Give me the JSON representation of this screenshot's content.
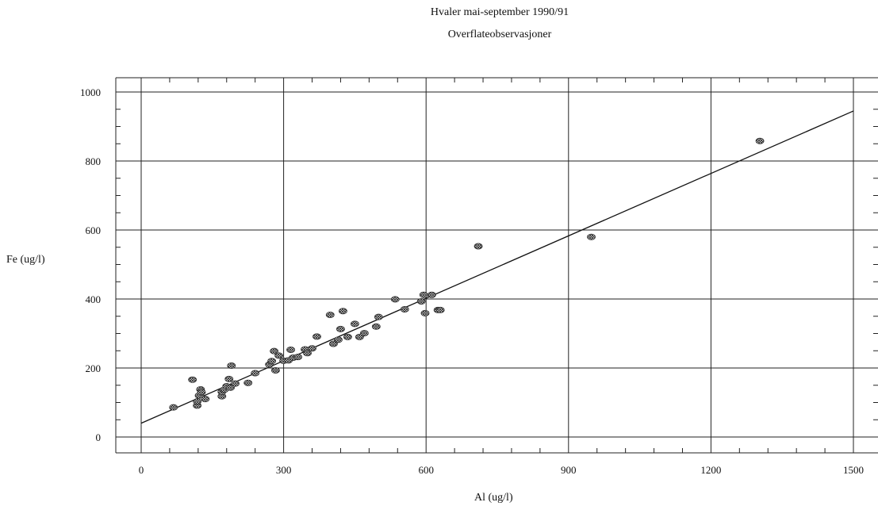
{
  "chart_data": {
    "type": "scatter",
    "title": "Hvaler mai-september 1990/91",
    "subtitle": "Overflateobservasjoner",
    "xlabel": "Al (ug/l)",
    "ylabel": "Fe (ug/l)",
    "xlim": [
      -60,
      1560
    ],
    "ylim": [
      -40,
      1030
    ],
    "xticks": [
      0,
      300,
      600,
      900,
      1200,
      1500
    ],
    "yticks": [
      0,
      200,
      400,
      600,
      800,
      1000
    ],
    "grid": true,
    "regression_line": {
      "x": [
        0,
        1500
      ],
      "y": [
        40,
        945
      ]
    },
    "points": [
      {
        "x": 68,
        "y": 86
      },
      {
        "x": 108,
        "y": 166
      },
      {
        "x": 118,
        "y": 91
      },
      {
        "x": 118,
        "y": 103
      },
      {
        "x": 122,
        "y": 120
      },
      {
        "x": 125,
        "y": 138
      },
      {
        "x": 127,
        "y": 130
      },
      {
        "x": 135,
        "y": 110
      },
      {
        "x": 170,
        "y": 118
      },
      {
        "x": 170,
        "y": 131
      },
      {
        "x": 175,
        "y": 137
      },
      {
        "x": 180,
        "y": 147
      },
      {
        "x": 185,
        "y": 168
      },
      {
        "x": 188,
        "y": 143
      },
      {
        "x": 190,
        "y": 207
      },
      {
        "x": 198,
        "y": 155
      },
      {
        "x": 225,
        "y": 157
      },
      {
        "x": 240,
        "y": 185
      },
      {
        "x": 270,
        "y": 210
      },
      {
        "x": 275,
        "y": 220
      },
      {
        "x": 280,
        "y": 249
      },
      {
        "x": 283,
        "y": 193
      },
      {
        "x": 290,
        "y": 236
      },
      {
        "x": 300,
        "y": 221
      },
      {
        "x": 310,
        "y": 222
      },
      {
        "x": 315,
        "y": 253
      },
      {
        "x": 320,
        "y": 230
      },
      {
        "x": 330,
        "y": 232
      },
      {
        "x": 345,
        "y": 254
      },
      {
        "x": 350,
        "y": 243
      },
      {
        "x": 360,
        "y": 257
      },
      {
        "x": 370,
        "y": 291
      },
      {
        "x": 398,
        "y": 354
      },
      {
        "x": 405,
        "y": 270
      },
      {
        "x": 415,
        "y": 282
      },
      {
        "x": 420,
        "y": 313
      },
      {
        "x": 425,
        "y": 365
      },
      {
        "x": 435,
        "y": 290
      },
      {
        "x": 450,
        "y": 328
      },
      {
        "x": 460,
        "y": 290
      },
      {
        "x": 470,
        "y": 301
      },
      {
        "x": 495,
        "y": 320
      },
      {
        "x": 500,
        "y": 348
      },
      {
        "x": 535,
        "y": 399
      },
      {
        "x": 555,
        "y": 370
      },
      {
        "x": 590,
        "y": 393
      },
      {
        "x": 595,
        "y": 412
      },
      {
        "x": 598,
        "y": 359
      },
      {
        "x": 612,
        "y": 412
      },
      {
        "x": 625,
        "y": 368
      },
      {
        "x": 630,
        "y": 368
      },
      {
        "x": 710,
        "y": 553
      },
      {
        "x": 948,
        "y": 580
      },
      {
        "x": 1303,
        "y": 858
      }
    ]
  }
}
